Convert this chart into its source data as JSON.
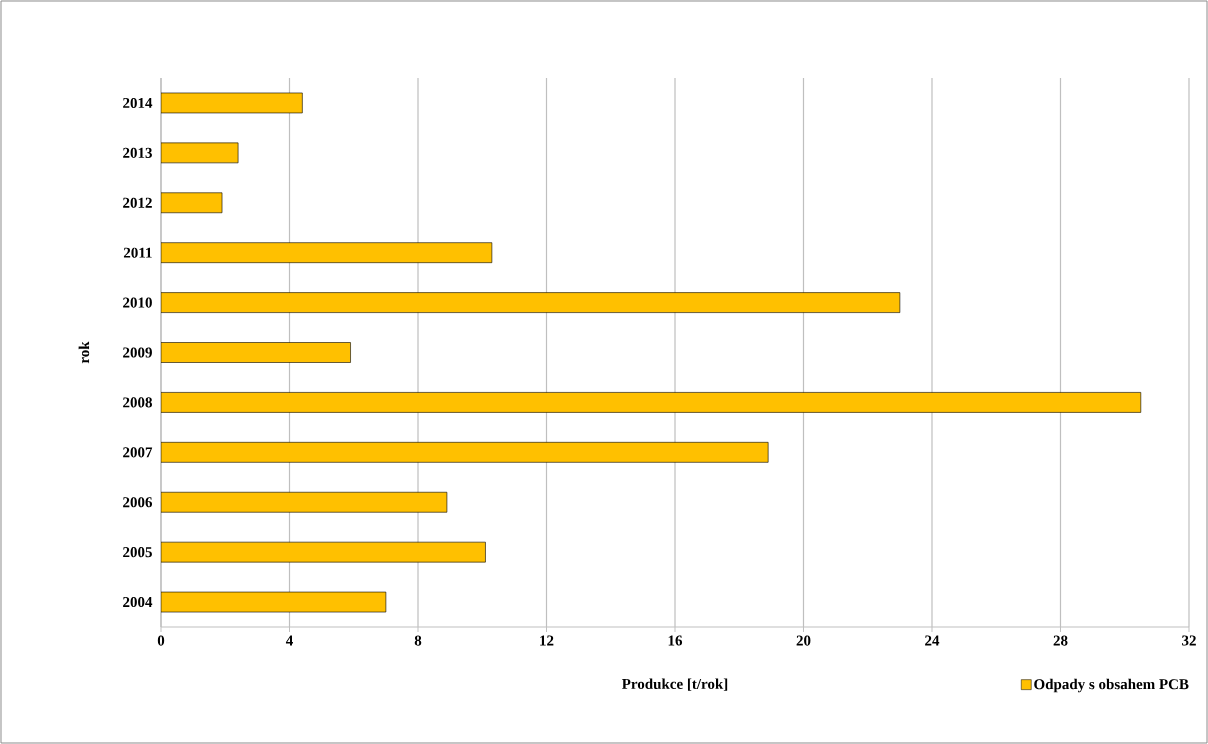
{
  "chart_data": {
    "type": "bar",
    "orientation": "horizontal",
    "xlabel": "Produkce [t/rok]",
    "ylabel": "rok",
    "categories": [
      "2014",
      "2013",
      "2012",
      "2011",
      "2010",
      "2009",
      "2008",
      "2007",
      "2006",
      "2005",
      "2004"
    ],
    "series": [
      {
        "name": "Odpady s obsahem PCB",
        "color": "#ffc000",
        "values": [
          4.4,
          2.4,
          1.9,
          10.3,
          23.0,
          5.9,
          30.5,
          18.9,
          8.9,
          10.1,
          7.0
        ]
      }
    ],
    "xlim": [
      0,
      32
    ],
    "xticks": [
      0,
      4,
      8,
      12,
      16,
      20,
      24,
      28,
      32
    ],
    "grid": "x",
    "legend": "bottom right"
  }
}
